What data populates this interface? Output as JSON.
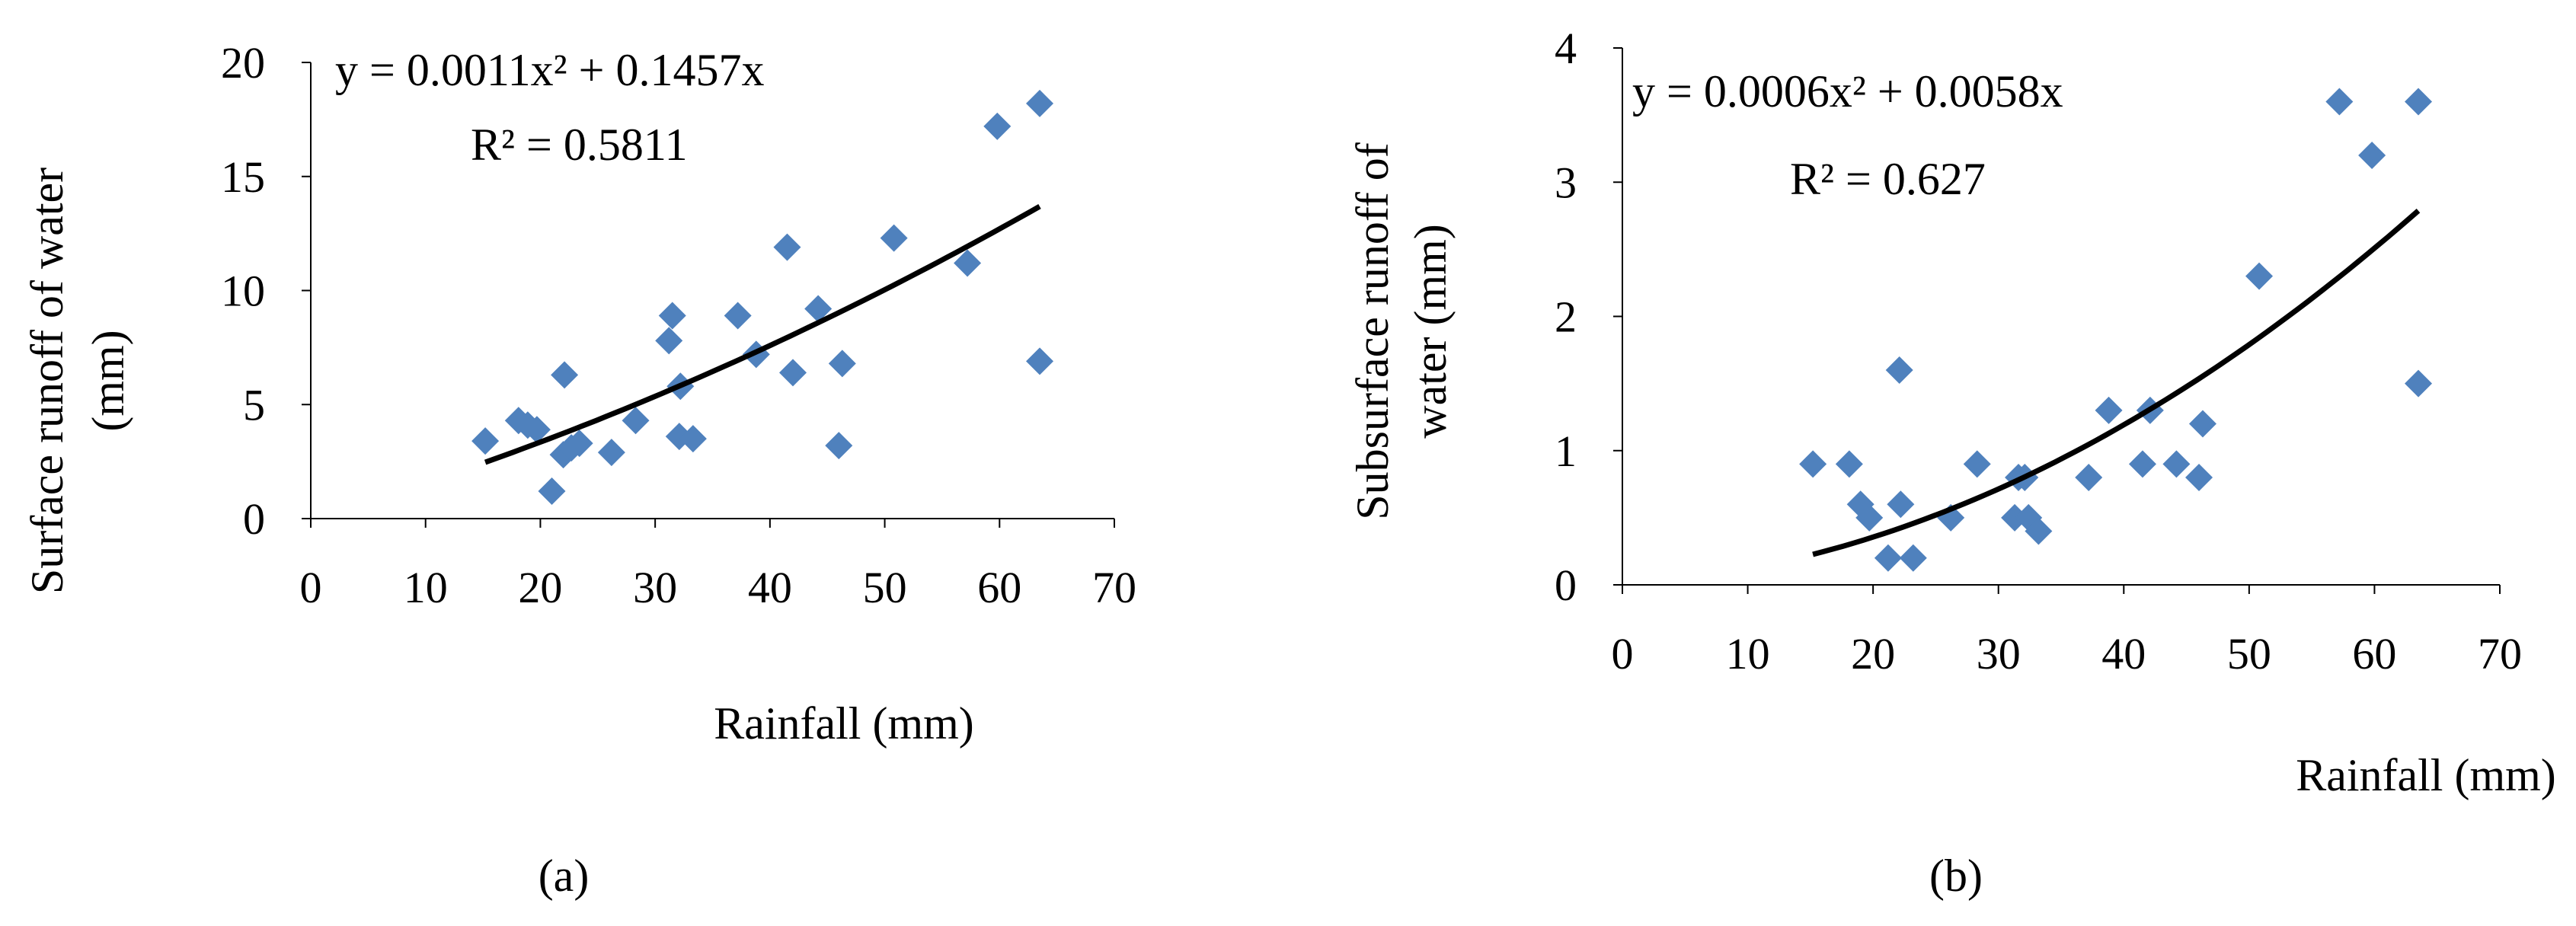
{
  "chart_data": [
    {
      "type": "scatter",
      "panel": "(a)",
      "xlabel": "Rainfall (mm)",
      "ylabel_lines": [
        "Surface runoff of water",
        "(mm)"
      ],
      "xlim": [
        0,
        70
      ],
      "ylim": [
        0,
        20
      ],
      "xticks": [
        0,
        10,
        20,
        30,
        40,
        50,
        60,
        70
      ],
      "yticks": [
        0,
        5,
        10,
        15,
        20
      ],
      "equation": "y = 0.0011x² + 0.1457x",
      "r_squared": "R² = 0.5811",
      "trendline": {
        "a": 0.0011,
        "b": 0.1457,
        "x_range": [
          15.2,
          63.5
        ]
      },
      "points": [
        {
          "x": 15.2,
          "y": 3.4
        },
        {
          "x": 18.1,
          "y": 4.3
        },
        {
          "x": 18.9,
          "y": 4.1
        },
        {
          "x": 19.7,
          "y": 3.9
        },
        {
          "x": 21.0,
          "y": 1.2
        },
        {
          "x": 22.1,
          "y": 6.3
        },
        {
          "x": 22.0,
          "y": 2.8
        },
        {
          "x": 22.7,
          "y": 3.1
        },
        {
          "x": 23.4,
          "y": 3.3
        },
        {
          "x": 26.2,
          "y": 2.9
        },
        {
          "x": 28.3,
          "y": 4.3
        },
        {
          "x": 31.2,
          "y": 7.8
        },
        {
          "x": 31.5,
          "y": 8.9
        },
        {
          "x": 32.1,
          "y": 3.6
        },
        {
          "x": 32.2,
          "y": 5.8
        },
        {
          "x": 33.3,
          "y": 3.5
        },
        {
          "x": 37.2,
          "y": 8.9
        },
        {
          "x": 38.8,
          "y": 7.2
        },
        {
          "x": 41.5,
          "y": 11.9
        },
        {
          "x": 42.0,
          "y": 6.4
        },
        {
          "x": 44.2,
          "y": 9.2
        },
        {
          "x": 46.0,
          "y": 3.2
        },
        {
          "x": 46.3,
          "y": 6.8
        },
        {
          "x": 50.8,
          "y": 12.3
        },
        {
          "x": 57.2,
          "y": 11.2
        },
        {
          "x": 59.8,
          "y": 17.2
        },
        {
          "x": 63.5,
          "y": 18.2
        },
        {
          "x": 63.5,
          "y": 6.9
        }
      ]
    },
    {
      "type": "scatter",
      "panel": "(b)",
      "xlabel": "Rainfall (mm)",
      "ylabel_lines": [
        "Subsurface runoff of",
        "water (mm)"
      ],
      "xlim": [
        0,
        70
      ],
      "ylim": [
        0,
        4
      ],
      "xticks": [
        0,
        10,
        20,
        30,
        40,
        50,
        60,
        70
      ],
      "yticks": [
        0,
        1,
        2,
        3,
        4
      ],
      "equation": "y = 0.0006x² + 0.0058x",
      "r_squared": "R² = 0.627",
      "trendline": {
        "a": 0.0006,
        "b": 0.0058,
        "x_range": [
          15.2,
          63.5
        ]
      },
      "points": [
        {
          "x": 15.2,
          "y": 0.9
        },
        {
          "x": 18.1,
          "y": 0.9
        },
        {
          "x": 19.0,
          "y": 0.6
        },
        {
          "x": 19.7,
          "y": 0.5
        },
        {
          "x": 21.2,
          "y": 0.2
        },
        {
          "x": 22.1,
          "y": 1.6
        },
        {
          "x": 22.2,
          "y": 0.6
        },
        {
          "x": 23.2,
          "y": 0.2
        },
        {
          "x": 26.2,
          "y": 0.5
        },
        {
          "x": 28.3,
          "y": 0.9
        },
        {
          "x": 31.3,
          "y": 0.5
        },
        {
          "x": 31.6,
          "y": 0.8
        },
        {
          "x": 32.1,
          "y": 0.8
        },
        {
          "x": 32.4,
          "y": 0.5
        },
        {
          "x": 33.2,
          "y": 0.4
        },
        {
          "x": 37.2,
          "y": 0.8
        },
        {
          "x": 38.8,
          "y": 1.3
        },
        {
          "x": 41.5,
          "y": 0.9
        },
        {
          "x": 42.1,
          "y": 1.3
        },
        {
          "x": 44.2,
          "y": 0.9
        },
        {
          "x": 46.0,
          "y": 0.8
        },
        {
          "x": 46.3,
          "y": 1.2
        },
        {
          "x": 50.8,
          "y": 2.3
        },
        {
          "x": 57.2,
          "y": 3.6
        },
        {
          "x": 59.8,
          "y": 3.2
        },
        {
          "x": 63.5,
          "y": 3.6
        },
        {
          "x": 63.5,
          "y": 1.5
        }
      ]
    }
  ]
}
